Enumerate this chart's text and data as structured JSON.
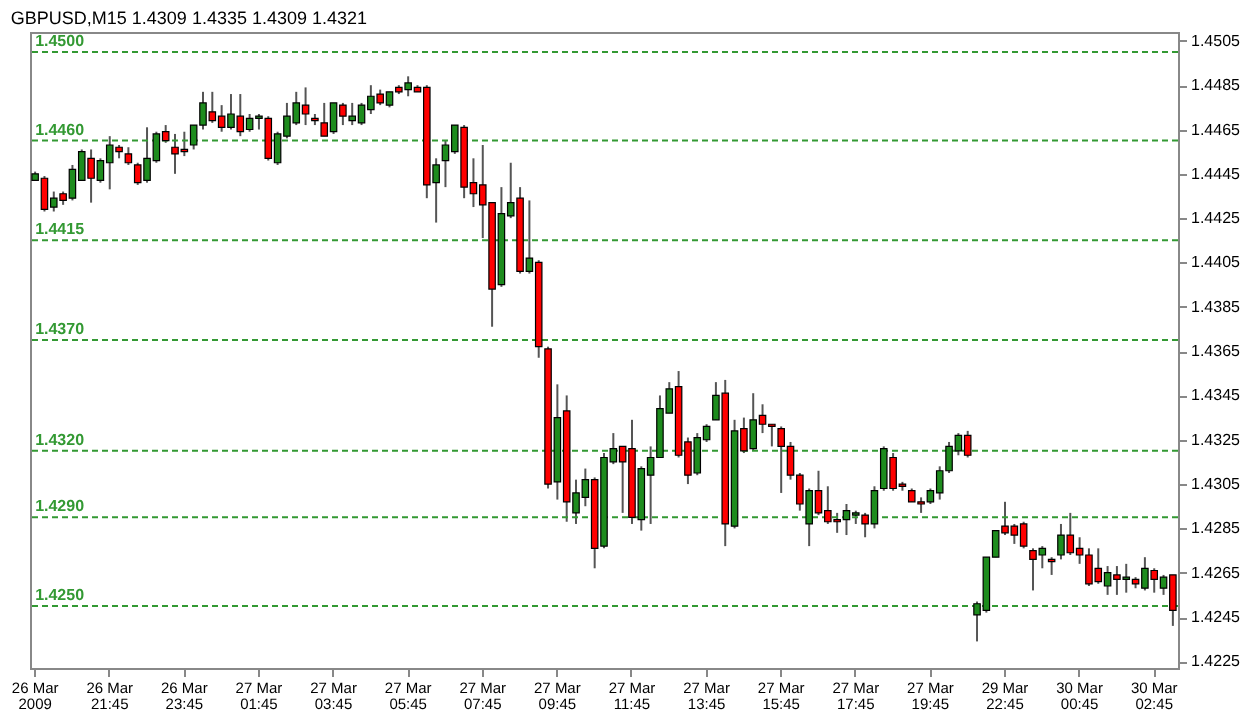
{
  "chart_data": {
    "type": "candlestick",
    "title": "GBPUSD,M15  1.4309 1.4335 1.4309 1.4321",
    "categories": [
      "26 Mar 2009",
      null,
      null,
      null,
      null,
      null,
      null,
      null,
      "26 Mar 21:45",
      null,
      null,
      null,
      null,
      null,
      null,
      null,
      "26 Mar 23:45",
      null,
      null,
      null,
      null,
      null,
      null,
      null,
      "27 Mar 01:45",
      null,
      null,
      null,
      null,
      null,
      null,
      null,
      "27 Mar 03:45",
      null,
      null,
      null,
      null,
      null,
      null,
      null,
      "27 Mar 05:45",
      null,
      null,
      null,
      null,
      null,
      null,
      null,
      "27 Mar 07:45",
      null,
      null,
      null,
      null,
      null,
      null,
      null,
      "27 Mar 09:45",
      null,
      null,
      null,
      null,
      null,
      null,
      null,
      "27 Mar 11:45",
      null,
      null,
      null,
      null,
      null,
      null,
      null,
      "27 Mar 13:45",
      null,
      null,
      null,
      null,
      null,
      null,
      null,
      "27 Mar 15:45",
      null,
      null,
      null,
      null,
      null,
      null,
      null,
      "27 Mar 17:45",
      null,
      null,
      null,
      null,
      null,
      null,
      null,
      "27 Mar 19:45",
      null,
      null,
      null,
      null,
      null,
      null,
      null,
      "29 Mar 22:45",
      null,
      null,
      null,
      null,
      null,
      null,
      null,
      "30 Mar 00:45",
      null,
      null,
      null,
      null,
      null,
      null,
      null,
      "30 Mar 02:45",
      null,
      null
    ],
    "ohlc": [
      [
        1.4442,
        1.4446,
        1.4442,
        1.4445
      ],
      [
        1.4443,
        1.4444,
        1.4428,
        1.4429
      ],
      [
        1.443,
        1.4437,
        1.4428,
        1.4434
      ],
      [
        1.4436,
        1.4437,
        1.4431,
        1.4433
      ],
      [
        1.4434,
        1.4449,
        1.4433,
        1.4447
      ],
      [
        1.4442,
        1.4456,
        1.4442,
        1.4455
      ],
      [
        1.4452,
        1.4456,
        1.4432,
        1.4443
      ],
      [
        1.4442,
        1.4452,
        1.4441,
        1.4451
      ],
      [
        1.445,
        1.4462,
        1.4438,
        1.4458
      ],
      [
        1.4457,
        1.4458,
        1.4452,
        1.4455
      ],
      [
        1.4454,
        1.4457,
        1.4449,
        1.445
      ],
      [
        1.4449,
        1.445,
        1.444,
        1.4441
      ],
      [
        1.4442,
        1.4466,
        1.4441,
        1.4452
      ],
      [
        1.4451,
        1.4464,
        1.445,
        1.4463
      ],
      [
        1.4464,
        1.4467,
        1.4459,
        1.446
      ],
      [
        1.4457,
        1.4463,
        1.4445,
        1.4454
      ],
      [
        1.4456,
        1.4464,
        1.4453,
        1.4455
      ],
      [
        1.4458,
        1.4467,
        1.4456,
        1.4467
      ],
      [
        1.4467,
        1.4482,
        1.4465,
        1.4477
      ],
      [
        1.4473,
        1.4482,
        1.4468,
        1.4469
      ],
      [
        1.4471,
        1.4476,
        1.4464,
        1.4466
      ],
      [
        1.4466,
        1.4481,
        1.4465,
        1.4472
      ],
      [
        1.4471,
        1.4481,
        1.4462,
        1.4464
      ],
      [
        1.4465,
        1.4472,
        1.4464,
        1.447
      ],
      [
        1.447,
        1.4472,
        1.4465,
        1.4471
      ],
      [
        1.447,
        1.4471,
        1.4451,
        1.4452
      ],
      [
        1.445,
        1.4464,
        1.4449,
        1.4463
      ],
      [
        1.4462,
        1.4477,
        1.4461,
        1.4471
      ],
      [
        1.4468,
        1.4482,
        1.4467,
        1.4477
      ],
      [
        1.4476,
        1.4484,
        1.4467,
        1.4472
      ],
      [
        1.447,
        1.4472,
        1.4467,
        1.4469
      ],
      [
        1.4468,
        1.4477,
        1.4462,
        1.4462
      ],
      [
        1.4464,
        1.4477,
        1.4463,
        1.4477
      ],
      [
        1.4476,
        1.4477,
        1.4467,
        1.4471
      ],
      [
        1.4469,
        1.4477,
        1.4467,
        1.4471
      ],
      [
        1.4468,
        1.4477,
        1.4467,
        1.4476
      ],
      [
        1.4474,
        1.4485,
        1.4472,
        1.448
      ],
      [
        1.4481,
        1.4483,
        1.4476,
        1.4477
      ],
      [
        1.4476,
        1.4482,
        1.4475,
        1.4482
      ],
      [
        1.4484,
        1.4485,
        1.4481,
        1.4482
      ],
      [
        1.4483,
        1.4489,
        1.448,
        1.4486
      ],
      [
        1.4484,
        1.4485,
        1.4482,
        1.4482
      ],
      [
        1.4484,
        1.4485,
        1.4434,
        1.444
      ],
      [
        1.4441,
        1.4452,
        1.4423,
        1.4449
      ],
      [
        1.4451,
        1.446,
        1.4439,
        1.4458
      ],
      [
        1.4455,
        1.4467,
        1.4454,
        1.4467
      ],
      [
        1.4466,
        1.4467,
        1.4434,
        1.4439
      ],
      [
        1.4441,
        1.4452,
        1.443,
        1.4436
      ],
      [
        1.444,
        1.4458,
        1.4416,
        1.4431
      ],
      [
        1.4432,
        1.4432,
        1.4376,
        1.4393
      ],
      [
        1.4395,
        1.4439,
        1.4394,
        1.4427
      ],
      [
        1.4426,
        1.445,
        1.4425,
        1.4432
      ],
      [
        1.4434,
        1.4439,
        1.44,
        1.4401
      ],
      [
        1.4401,
        1.4433,
        1.44,
        1.4407
      ],
      [
        1.4405,
        1.4406,
        1.4362,
        1.4367
      ],
      [
        1.4366,
        1.4367,
        1.4303,
        1.4305
      ],
      [
        1.4306,
        1.435,
        1.4298,
        1.4335
      ],
      [
        1.4338,
        1.4345,
        1.4288,
        1.4297
      ],
      [
        1.4292,
        1.4307,
        1.4287,
        1.4301
      ],
      [
        1.4299,
        1.4312,
        1.4295,
        1.4307
      ],
      [
        1.4307,
        1.4308,
        1.4267,
        1.4276
      ],
      [
        1.4277,
        1.4319,
        1.4276,
        1.4317
      ],
      [
        1.4315,
        1.4328,
        1.4314,
        1.4321
      ],
      [
        1.4322,
        1.4322,
        1.4292,
        1.4315
      ],
      [
        1.4321,
        1.4334,
        1.4287,
        1.429
      ],
      [
        1.4289,
        1.4313,
        1.4284,
        1.4312
      ],
      [
        1.4309,
        1.4322,
        1.4287,
        1.4317
      ],
      [
        1.4317,
        1.4345,
        1.4317,
        1.4339
      ],
      [
        1.4337,
        1.4351,
        1.4337,
        1.4348
      ],
      [
        1.4349,
        1.4356,
        1.4317,
        1.4318
      ],
      [
        1.4324,
        1.4326,
        1.4305,
        1.4309
      ],
      [
        1.431,
        1.4328,
        1.4309,
        1.4326
      ],
      [
        1.4325,
        1.4332,
        1.4324,
        1.4331
      ],
      [
        1.4334,
        1.4351,
        1.4334,
        1.4345
      ],
      [
        1.4346,
        1.4352,
        1.4277,
        1.4287
      ],
      [
        1.4286,
        1.4334,
        1.4285,
        1.4329
      ],
      [
        1.433,
        1.4335,
        1.4319,
        1.432
      ],
      [
        1.4321,
        1.4346,
        1.432,
        1.4334
      ],
      [
        1.4336,
        1.4341,
        1.4328,
        1.4332
      ],
      [
        1.4332,
        1.4332,
        1.4322,
        1.4331
      ],
      [
        1.433,
        1.4331,
        1.4301,
        1.4322
      ],
      [
        1.4322,
        1.4324,
        1.4307,
        1.4309
      ],
      [
        1.4309,
        1.431,
        1.4293,
        1.4296
      ],
      [
        1.4287,
        1.4303,
        1.4277,
        1.4302
      ],
      [
        1.4302,
        1.4311,
        1.4291,
        1.4292
      ],
      [
        1.4293,
        1.4304,
        1.4287,
        1.4288
      ],
      [
        1.4289,
        1.4292,
        1.4283,
        1.4288
      ],
      [
        1.4289,
        1.4296,
        1.4282,
        1.4293
      ],
      [
        1.4291,
        1.4293,
        1.4287,
        1.4292
      ],
      [
        1.4291,
        1.4292,
        1.4281,
        1.4287
      ],
      [
        1.4287,
        1.4304,
        1.4285,
        1.4302
      ],
      [
        1.4303,
        1.4322,
        1.4302,
        1.4321
      ],
      [
        1.4317,
        1.4319,
        1.4302,
        1.4303
      ],
      [
        1.4305,
        1.4306,
        1.4302,
        1.4304
      ],
      [
        1.4302,
        1.4303,
        1.4297,
        1.4297
      ],
      [
        1.4297,
        1.4299,
        1.4292,
        1.4296
      ],
      [
        1.4297,
        1.4303,
        1.4296,
        1.4302
      ],
      [
        1.4301,
        1.4313,
        1.4298,
        1.4311
      ],
      [
        1.4311,
        1.4324,
        1.431,
        1.4322
      ],
      [
        1.432,
        1.4328,
        1.4318,
        1.4327
      ],
      [
        1.4327,
        1.4329,
        1.4317,
        1.4318
      ],
      [
        1.4246,
        1.4252,
        1.4234,
        1.4251
      ],
      [
        1.4248,
        1.4272,
        1.4247,
        1.4272
      ],
      [
        1.4272,
        1.4284,
        1.4272,
        1.4284
      ],
      [
        1.4286,
        1.4297,
        1.4282,
        1.4283
      ],
      [
        1.4286,
        1.4287,
        1.4278,
        1.4282
      ],
      [
        1.4287,
        1.4288,
        1.4276,
        1.4277
      ],
      [
        1.4275,
        1.4276,
        1.4257,
        1.4271
      ],
      [
        1.4273,
        1.4277,
        1.4267,
        1.4276
      ],
      [
        1.4271,
        1.4272,
        1.4264,
        1.427
      ],
      [
        1.4273,
        1.4287,
        1.4271,
        1.4282
      ],
      [
        1.4282,
        1.4292,
        1.4273,
        1.4274
      ],
      [
        1.4276,
        1.4281,
        1.4269,
        1.4273
      ],
      [
        1.4273,
        1.4276,
        1.4259,
        1.426
      ],
      [
        1.4267,
        1.4276,
        1.426,
        1.4261
      ],
      [
        1.4259,
        1.4268,
        1.4255,
        1.4265
      ],
      [
        1.4264,
        1.4268,
        1.4255,
        1.4262
      ],
      [
        1.4262,
        1.4269,
        1.4256,
        1.4263
      ],
      [
        1.4262,
        1.4263,
        1.4258,
        1.426
      ],
      [
        1.4258,
        1.4272,
        1.4257,
        1.4267
      ],
      [
        1.4266,
        1.4267,
        1.4256,
        1.4262
      ],
      [
        1.4258,
        1.4264,
        1.4255,
        1.4263
      ],
      [
        1.4264,
        1.4264,
        1.4241,
        1.4248
      ]
    ],
    "ylim": [
      1.4222,
      1.4509
    ],
    "yticks": [
      1.4225,
      1.4245,
      1.4265,
      1.4285,
      1.4305,
      1.4325,
      1.4345,
      1.4365,
      1.4385,
      1.4405,
      1.4425,
      1.4445,
      1.4465,
      1.4485,
      1.4505
    ],
    "ref_lines": [
      {
        "axis": "y",
        "value": 1.45,
        "label": "1.4500",
        "color": "#339933",
        "line_style": "dashed"
      },
      {
        "axis": "y",
        "value": 1.446,
        "label": "1.4460",
        "color": "#339933",
        "line_style": "dashed"
      },
      {
        "axis": "y",
        "value": 1.4415,
        "label": "1.4415",
        "color": "#339933",
        "line_style": "dashed"
      },
      {
        "axis": "y",
        "value": 1.437,
        "label": "1.4370",
        "color": "#339933",
        "line_style": "dashed"
      },
      {
        "axis": "y",
        "value": 1.432,
        "label": "1.4320",
        "color": "#339933",
        "line_style": "dashed"
      },
      {
        "axis": "y",
        "value": 1.429,
        "label": "1.4290",
        "color": "#339933",
        "line_style": "dashed"
      },
      {
        "axis": "y",
        "value": 1.425,
        "label": "1.4250",
        "color": "#339933",
        "line_style": "dashed"
      }
    ],
    "grid": false
  }
}
